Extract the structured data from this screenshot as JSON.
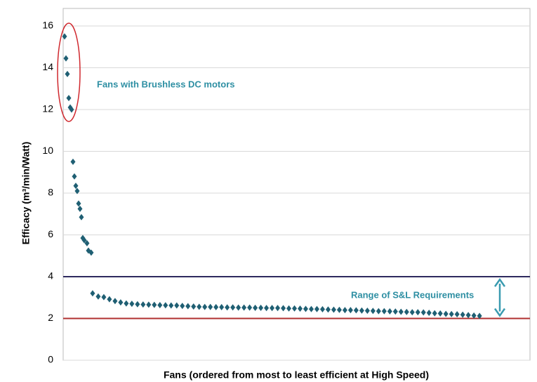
{
  "chart_data": {
    "type": "scatter",
    "y_label": "Efficacy (m³/min/Watt)",
    "x_label": "Fans (ordered from most to least efficient at High Speed)",
    "color": "#1f5f73",
    "grid": true,
    "ylim": [
      0,
      16
    ],
    "yticks": [
      0,
      2,
      4,
      6,
      8,
      10,
      12,
      14,
      16
    ],
    "xlim": [
      0,
      333
    ],
    "x": [
      1,
      2,
      3,
      4,
      5,
      6,
      7,
      8,
      9,
      10,
      11,
      12,
      13,
      14,
      15,
      17,
      18,
      20,
      21,
      25,
      29,
      33,
      37,
      41,
      45,
      49,
      53,
      57,
      61,
      65,
      69,
      73,
      77,
      81,
      85,
      89,
      93,
      97,
      101,
      105,
      109,
      113,
      117,
      121,
      125,
      129,
      133,
      137,
      141,
      145,
      149,
      153,
      157,
      161,
      165,
      169,
      173,
      177,
      181,
      185,
      189,
      193,
      197,
      201,
      205,
      209,
      213,
      217,
      221,
      225,
      229,
      233,
      237,
      241,
      245,
      249,
      253,
      257,
      261,
      265,
      269,
      273,
      277,
      281,
      285,
      289,
      293,
      297
    ],
    "values": [
      15.5,
      14.45,
      13.7,
      12.55,
      12.1,
      12.0,
      9.5,
      8.8,
      8.35,
      8.1,
      7.5,
      7.25,
      6.85,
      5.85,
      5.75,
      5.6,
      5.25,
      5.15,
      3.2,
      3.05,
      3.02,
      2.92,
      2.83,
      2.77,
      2.72,
      2.7,
      2.68,
      2.67,
      2.66,
      2.65,
      2.64,
      2.63,
      2.62,
      2.62,
      2.6,
      2.59,
      2.57,
      2.56,
      2.55,
      2.55,
      2.54,
      2.54,
      2.53,
      2.53,
      2.52,
      2.52,
      2.52,
      2.51,
      2.51,
      2.5,
      2.5,
      2.5,
      2.49,
      2.48,
      2.48,
      2.47,
      2.46,
      2.45,
      2.45,
      2.44,
      2.43,
      2.42,
      2.41,
      2.4,
      2.4,
      2.39,
      2.38,
      2.37,
      2.36,
      2.35,
      2.35,
      2.34,
      2.33,
      2.32,
      2.31,
      2.3,
      2.3,
      2.29,
      2.27,
      2.25,
      2.24,
      2.22,
      2.21,
      2.2,
      2.18,
      2.16,
      2.14,
      2.12
    ],
    "reference_lines": [
      {
        "value": 4,
        "color": "#2e2a5e"
      },
      {
        "value": 2,
        "color": "#b03030"
      }
    ],
    "annotations": [
      "Fans with Brushless DC motors",
      "Range of S&L Requirements"
    ]
  }
}
